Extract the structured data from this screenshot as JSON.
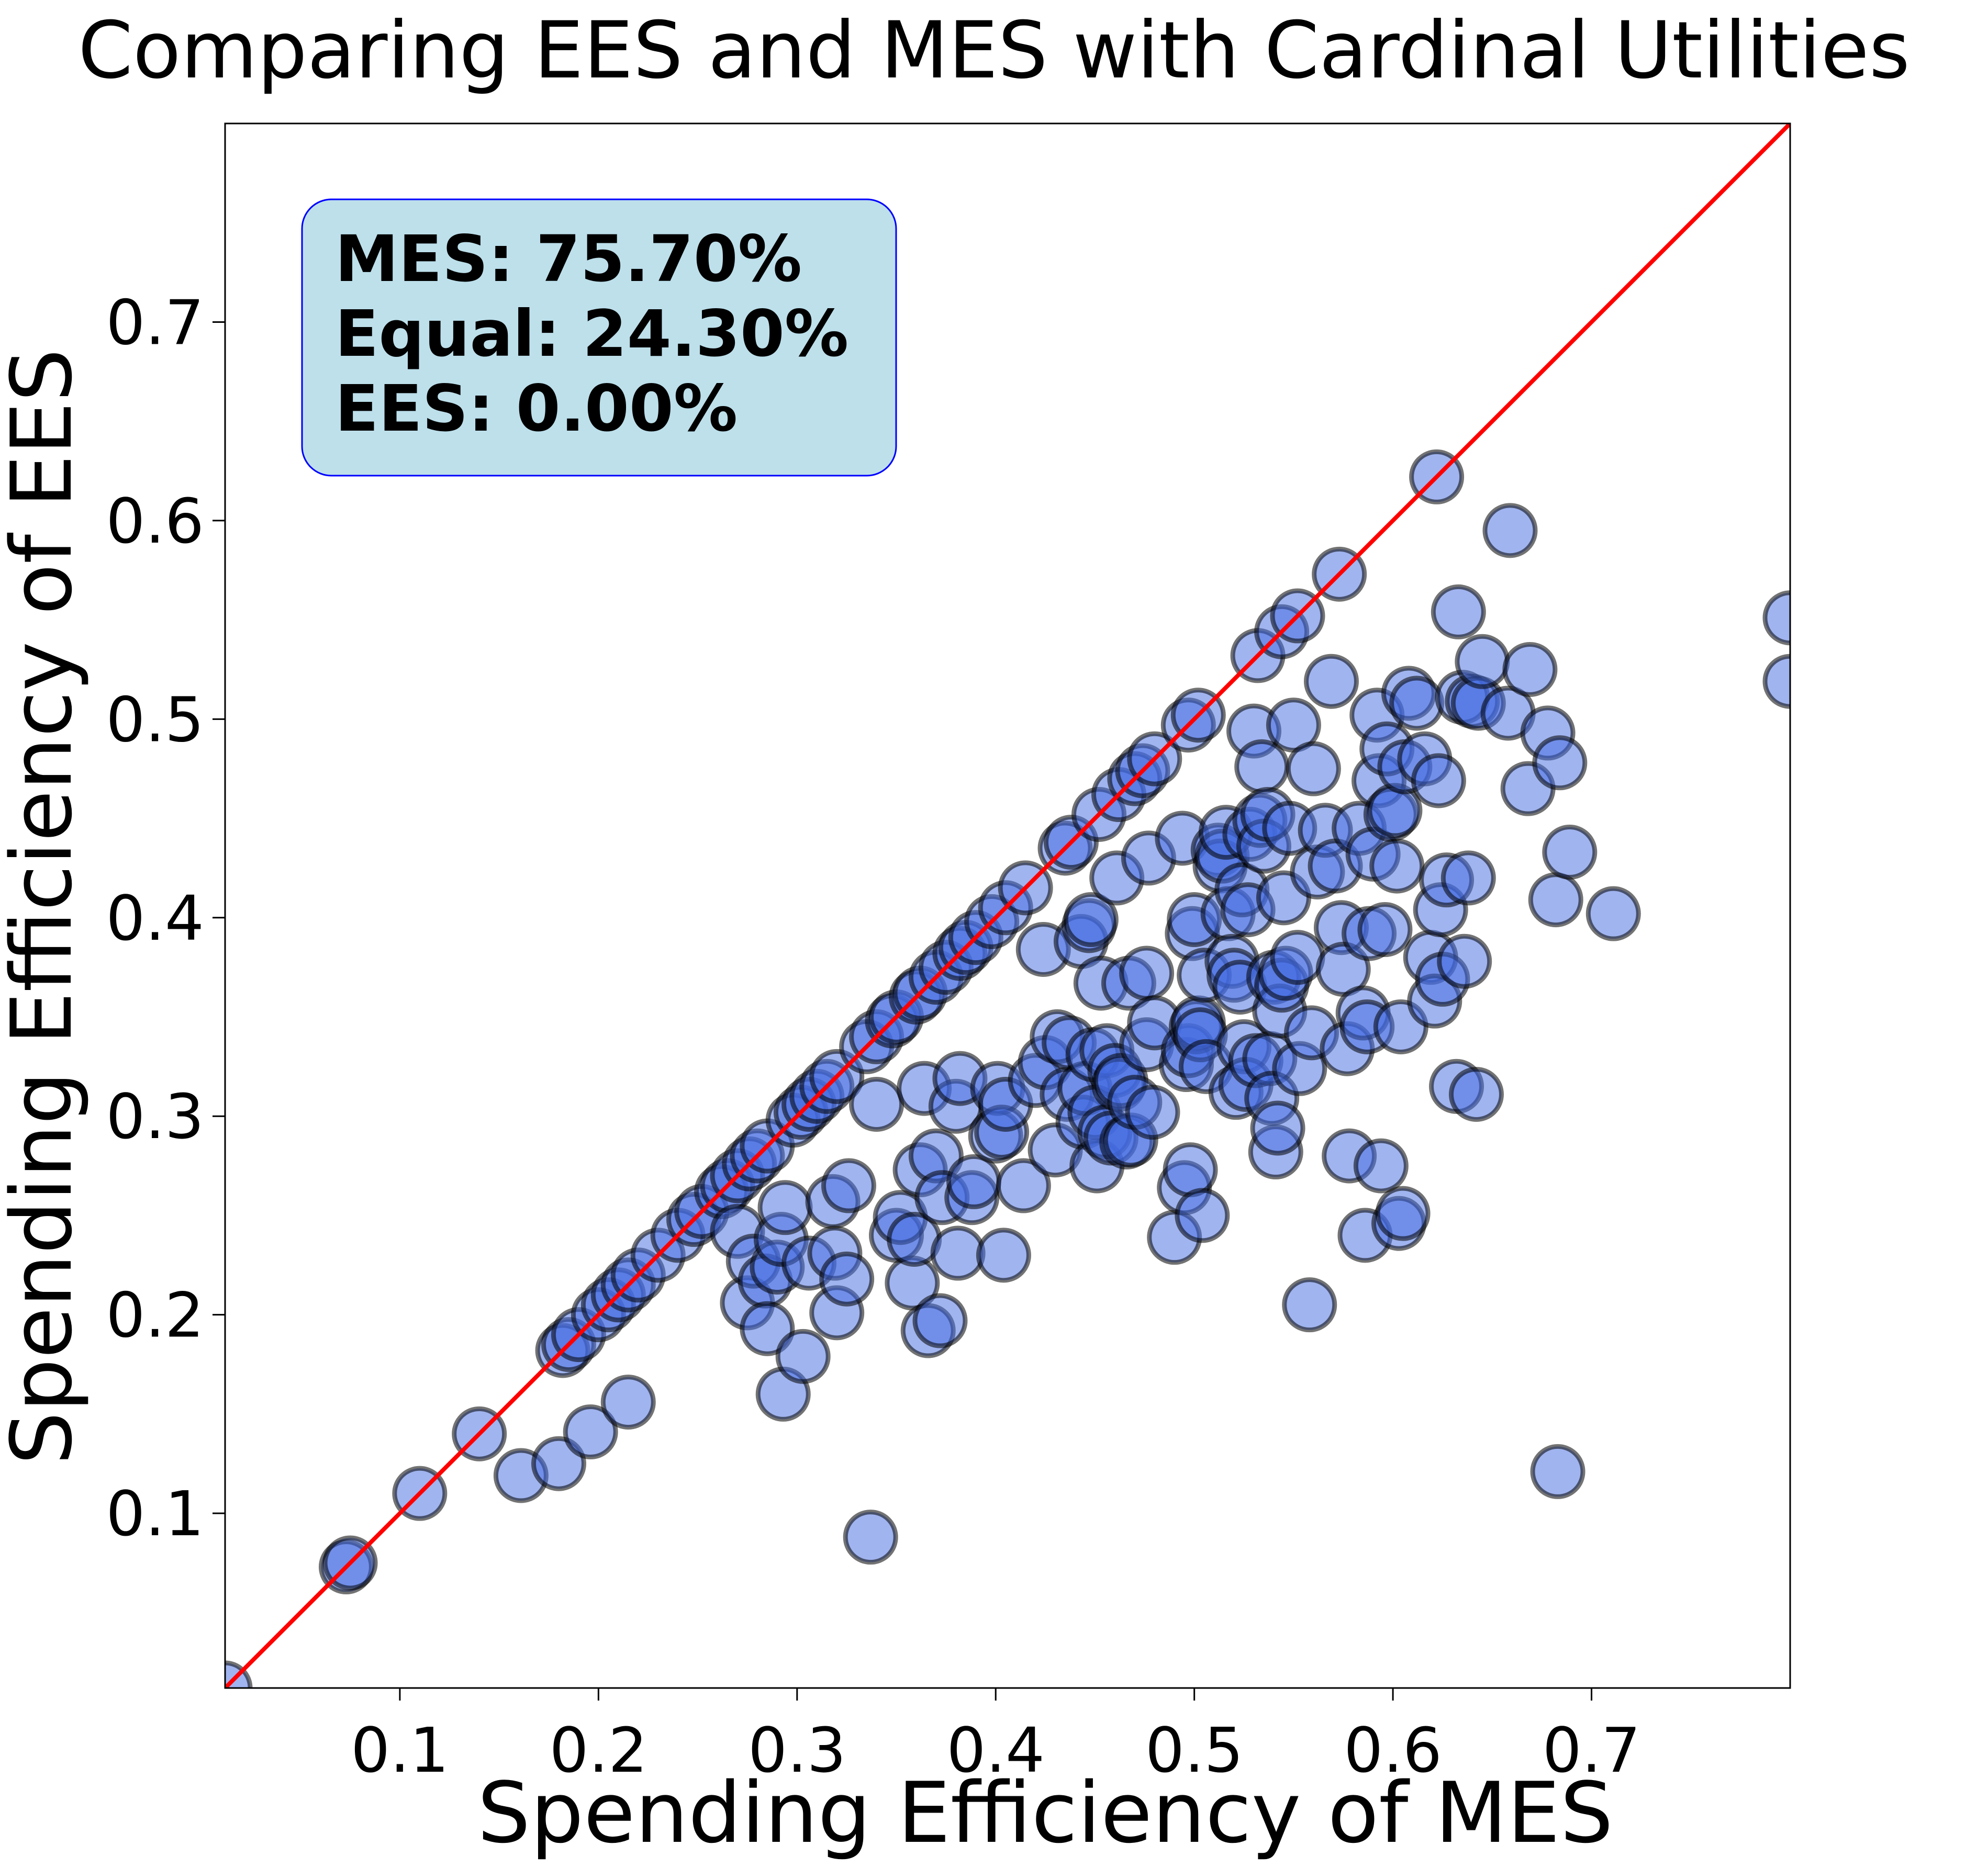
{
  "chart_data": {
    "type": "scatter",
    "title": "Comparing EES and MES with Cardinal Utilities",
    "xlabel": "Spending Efficiency of MES",
    "ylabel": "Spending Efficiency of EES",
    "xlim": [
      0.012,
      0.8
    ],
    "ylim": [
      0.012,
      0.8
    ],
    "xticks": [
      0.1,
      0.2,
      0.3,
      0.4,
      0.5,
      0.6,
      0.7
    ],
    "yticks": [
      0.1,
      0.2,
      0.3,
      0.4,
      0.5,
      0.6,
      0.7
    ],
    "xtick_labels": [
      "0.1",
      "0.2",
      "0.3",
      "0.4",
      "0.5",
      "0.6",
      "0.7"
    ],
    "ytick_labels": [
      "0.1",
      "0.2",
      "0.3",
      "0.4",
      "0.5",
      "0.6",
      "0.7"
    ],
    "reference_line": {
      "label": "y = x",
      "color": "#ff0000"
    },
    "marker_color": "#4169e1",
    "stats": {
      "location": "top-left",
      "lines": [
        "MES: 75.70%",
        "Equal: 24.30%",
        "EES: 0.00%"
      ],
      "box_color": "#add8e6",
      "border_color": "#0000ff"
    },
    "points": [
      [
        0.012,
        0.012
      ],
      [
        0.073,
        0.073
      ],
      [
        0.075,
        0.075
      ],
      [
        0.11,
        0.11
      ],
      [
        0.14,
        0.14
      ],
      [
        0.182,
        0.182
      ],
      [
        0.185,
        0.185
      ],
      [
        0.19,
        0.19
      ],
      [
        0.2,
        0.2
      ],
      [
        0.205,
        0.205
      ],
      [
        0.21,
        0.21
      ],
      [
        0.215,
        0.215
      ],
      [
        0.22,
        0.22
      ],
      [
        0.23,
        0.23
      ],
      [
        0.24,
        0.24
      ],
      [
        0.248,
        0.248
      ],
      [
        0.252,
        0.252
      ],
      [
        0.262,
        0.262
      ],
      [
        0.265,
        0.265
      ],
      [
        0.27,
        0.27
      ],
      [
        0.276,
        0.276
      ],
      [
        0.28,
        0.28
      ],
      [
        0.285,
        0.285
      ],
      [
        0.298,
        0.298
      ],
      [
        0.302,
        0.302
      ],
      [
        0.306,
        0.306
      ],
      [
        0.31,
        0.31
      ],
      [
        0.315,
        0.315
      ],
      [
        0.32,
        0.32
      ],
      [
        0.335,
        0.335
      ],
      [
        0.34,
        0.34
      ],
      [
        0.348,
        0.348
      ],
      [
        0.35,
        0.35
      ],
      [
        0.36,
        0.36
      ],
      [
        0.362,
        0.362
      ],
      [
        0.37,
        0.37
      ],
      [
        0.375,
        0.375
      ],
      [
        0.382,
        0.382
      ],
      [
        0.385,
        0.385
      ],
      [
        0.39,
        0.39
      ],
      [
        0.398,
        0.398
      ],
      [
        0.405,
        0.405
      ],
      [
        0.415,
        0.415
      ],
      [
        0.435,
        0.435
      ],
      [
        0.438,
        0.438
      ],
      [
        0.452,
        0.452
      ],
      [
        0.462,
        0.462
      ],
      [
        0.47,
        0.47
      ],
      [
        0.474,
        0.474
      ],
      [
        0.48,
        0.48
      ],
      [
        0.497,
        0.497
      ],
      [
        0.502,
        0.502
      ],
      [
        0.532,
        0.532
      ],
      [
        0.544,
        0.544
      ],
      [
        0.552,
        0.552
      ],
      [
        0.573,
        0.573
      ],
      [
        0.622,
        0.622
      ],
      [
        0.161,
        0.119
      ],
      [
        0.18,
        0.125
      ],
      [
        0.196,
        0.141
      ],
      [
        0.215,
        0.156
      ],
      [
        0.27,
        0.242
      ],
      [
        0.275,
        0.206
      ],
      [
        0.278,
        0.227
      ],
      [
        0.284,
        0.217
      ],
      [
        0.285,
        0.193
      ],
      [
        0.29,
        0.224
      ],
      [
        0.292,
        0.238
      ],
      [
        0.293,
        0.16
      ],
      [
        0.294,
        0.254
      ],
      [
        0.303,
        0.179
      ],
      [
        0.306,
        0.226
      ],
      [
        0.318,
        0.257
      ],
      [
        0.319,
        0.231
      ],
      [
        0.32,
        0.201
      ],
      [
        0.325,
        0.218
      ],
      [
        0.326,
        0.265
      ],
      [
        0.337,
        0.088
      ],
      [
        0.34,
        0.306
      ],
      [
        0.35,
        0.24
      ],
      [
        0.352,
        0.249
      ],
      [
        0.358,
        0.216
      ],
      [
        0.359,
        0.238
      ],
      [
        0.362,
        0.273
      ],
      [
        0.364,
        0.314
      ],
      [
        0.366,
        0.192
      ],
      [
        0.37,
        0.28
      ],
      [
        0.372,
        0.197
      ],
      [
        0.373,
        0.259
      ],
      [
        0.38,
        0.305
      ],
      [
        0.381,
        0.231
      ],
      [
        0.382,
        0.319
      ],
      [
        0.388,
        0.259
      ],
      [
        0.389,
        0.267
      ],
      [
        0.4,
        0.29
      ],
      [
        0.401,
        0.314
      ],
      [
        0.403,
        0.292
      ],
      [
        0.404,
        0.23
      ],
      [
        0.405,
        0.306
      ],
      [
        0.414,
        0.265
      ],
      [
        0.42,
        0.318
      ],
      [
        0.424,
        0.384
      ],
      [
        0.425,
        0.327
      ],
      [
        0.43,
        0.283
      ],
      [
        0.431,
        0.34
      ],
      [
        0.436,
        0.311
      ],
      [
        0.437,
        0.337
      ],
      [
        0.443,
        0.388
      ],
      [
        0.444,
        0.297
      ],
      [
        0.445,
        0.314
      ],
      [
        0.447,
        0.396
      ],
      [
        0.448,
        0.399
      ],
      [
        0.449,
        0.331
      ],
      [
        0.45,
        0.302
      ],
      [
        0.451,
        0.275
      ],
      [
        0.453,
        0.367
      ],
      [
        0.455,
        0.292
      ],
      [
        0.456,
        0.333
      ],
      [
        0.458,
        0.289
      ],
      [
        0.46,
        0.323
      ],
      [
        0.461,
        0.42
      ],
      [
        0.462,
        0.316
      ],
      [
        0.463,
        0.318
      ],
      [
        0.466,
        0.287
      ],
      [
        0.467,
        0.367
      ],
      [
        0.468,
        0.288
      ],
      [
        0.47,
        0.307
      ],
      [
        0.476,
        0.372
      ],
      [
        0.476,
        0.336
      ],
      [
        0.477,
        0.43
      ],
      [
        0.479,
        0.302
      ],
      [
        0.48,
        0.347
      ],
      [
        0.49,
        0.239
      ],
      [
        0.494,
        0.44
      ],
      [
        0.495,
        0.264
      ],
      [
        0.496,
        0.326
      ],
      [
        0.497,
        0.333
      ],
      [
        0.498,
        0.273
      ],
      [
        0.499,
        0.392
      ],
      [
        0.5,
        0.399
      ],
      [
        0.501,
        0.345
      ],
      [
        0.502,
        0.347
      ],
      [
        0.503,
        0.341
      ],
      [
        0.504,
        0.25
      ],
      [
        0.505,
        0.371
      ],
      [
        0.506,
        0.325
      ],
      [
        0.512,
        0.434
      ],
      [
        0.513,
        0.426
      ],
      [
        0.514,
        0.431
      ],
      [
        0.516,
        0.443
      ],
      [
        0.517,
        0.402
      ],
      [
        0.519,
        0.378
      ],
      [
        0.52,
        0.371
      ],
      [
        0.521,
        0.312
      ],
      [
        0.523,
        0.365
      ],
      [
        0.524,
        0.414
      ],
      [
        0.525,
        0.335
      ],
      [
        0.526,
        0.316
      ],
      [
        0.527,
        0.404
      ],
      [
        0.528,
        0.442
      ],
      [
        0.53,
        0.494
      ],
      [
        0.531,
        0.328
      ],
      [
        0.533,
        0.449
      ],
      [
        0.534,
        0.476
      ],
      [
        0.535,
        0.436
      ],
      [
        0.537,
        0.452
      ],
      [
        0.538,
        0.329
      ],
      [
        0.539,
        0.309
      ],
      [
        0.54,
        0.37
      ],
      [
        0.541,
        0.282
      ],
      [
        0.542,
        0.294
      ],
      [
        0.543,
        0.353
      ],
      [
        0.544,
        0.366
      ],
      [
        0.545,
        0.41
      ],
      [
        0.546,
        0.372
      ],
      [
        0.548,
        0.445
      ],
      [
        0.55,
        0.497
      ],
      [
        0.552,
        0.38
      ],
      [
        0.553,
        0.324
      ],
      [
        0.558,
        0.205
      ],
      [
        0.559,
        0.342
      ],
      [
        0.56,
        0.475
      ],
      [
        0.562,
        0.423
      ],
      [
        0.566,
        0.444
      ],
      [
        0.569,
        0.519
      ],
      [
        0.571,
        0.426
      ],
      [
        0.574,
        0.395
      ],
      [
        0.575,
        0.374
      ],
      [
        0.577,
        0.334
      ],
      [
        0.578,
        0.28
      ],
      [
        0.583,
        0.445
      ],
      [
        0.585,
        0.352
      ],
      [
        0.586,
        0.24
      ],
      [
        0.587,
        0.345
      ],
      [
        0.588,
        0.392
      ],
      [
        0.59,
        0.432
      ],
      [
        0.592,
        0.502
      ],
      [
        0.593,
        0.469
      ],
      [
        0.594,
        0.275
      ],
      [
        0.596,
        0.394
      ],
      [
        0.597,
        0.485
      ],
      [
        0.599,
        0.452
      ],
      [
        0.601,
        0.454
      ],
      [
        0.602,
        0.426
      ],
      [
        0.603,
        0.246
      ],
      [
        0.604,
        0.345
      ],
      [
        0.605,
        0.251
      ],
      [
        0.606,
        0.476
      ],
      [
        0.608,
        0.513
      ],
      [
        0.612,
        0.508
      ],
      [
        0.616,
        0.48
      ],
      [
        0.619,
        0.38
      ],
      [
        0.621,
        0.358
      ],
      [
        0.623,
        0.469
      ],
      [
        0.624,
        0.404
      ],
      [
        0.625,
        0.369
      ],
      [
        0.627,
        0.419
      ],
      [
        0.632,
        0.315
      ],
      [
        0.633,
        0.554
      ],
      [
        0.635,
        0.511
      ],
      [
        0.636,
        0.378
      ],
      [
        0.638,
        0.42
      ],
      [
        0.64,
        0.509
      ],
      [
        0.642,
        0.311
      ],
      [
        0.643,
        0.508
      ],
      [
        0.645,
        0.529
      ],
      [
        0.658,
        0.503
      ],
      [
        0.659,
        0.595
      ],
      [
        0.668,
        0.465
      ],
      [
        0.669,
        0.525
      ],
      [
        0.678,
        0.493
      ],
      [
        0.682,
        0.409
      ],
      [
        0.683,
        0.121
      ],
      [
        0.684,
        0.478
      ],
      [
        0.689,
        0.433
      ],
      [
        0.711,
        0.402
      ],
      [
        0.8,
        0.551
      ],
      [
        0.8,
        0.519
      ]
    ]
  }
}
